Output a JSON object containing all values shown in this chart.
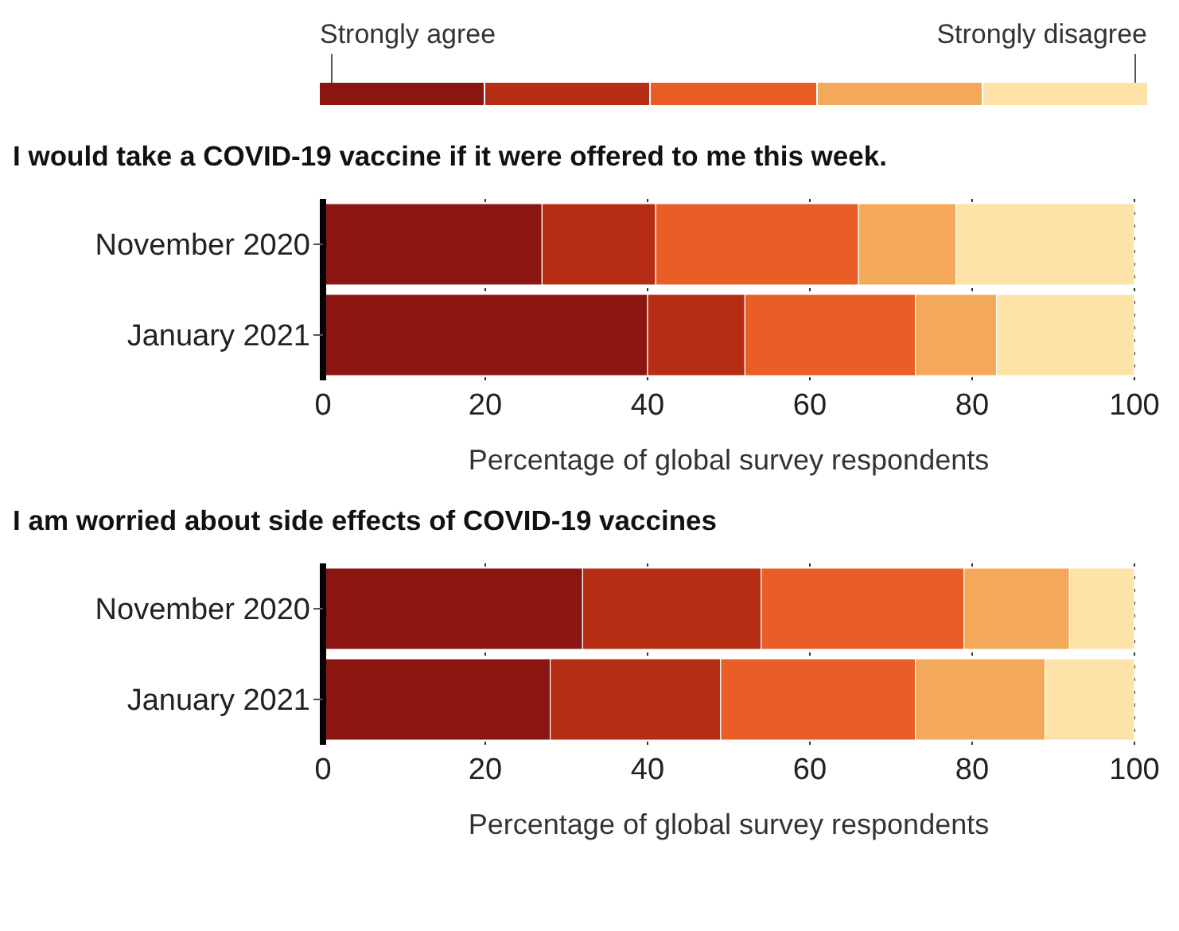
{
  "chart_data": [
    {
      "type": "bar",
      "orientation": "horizontal",
      "stacked": true,
      "title": "I would take a COVID-19 vaccine if it were offered to me this week.",
      "xlabel": "Percentage of global survey respondents",
      "categories": [
        "November 2020",
        "January 2021"
      ],
      "series": [
        {
          "color": "#8b1510",
          "values": [
            27,
            40
          ]
        },
        {
          "color": "#b52d12",
          "values": [
            14,
            12
          ]
        },
        {
          "color": "#e85e26",
          "values": [
            25,
            21
          ]
        },
        {
          "color": "#f4a95a",
          "values": [
            12,
            10
          ]
        },
        {
          "color": "#fde3a7",
          "values": [
            22,
            17
          ]
        }
      ],
      "xlim": [
        0,
        100
      ],
      "xticks": [
        0,
        20,
        40,
        60,
        80,
        100
      ],
      "grid": "x",
      "annotations": [
        "Strongly agree",
        "Strongly disagree"
      ]
    },
    {
      "type": "bar",
      "orientation": "horizontal",
      "stacked": true,
      "title": "I am worried about side effects of COVID-19 vaccines",
      "xlabel": "Percentage of global survey respondents",
      "categories": [
        "November 2020",
        "January 2021"
      ],
      "series": [
        {
          "color": "#8b1510",
          "values": [
            32,
            28
          ]
        },
        {
          "color": "#b52d12",
          "values": [
            22,
            21
          ]
        },
        {
          "color": "#e85e26",
          "values": [
            25,
            24
          ]
        },
        {
          "color": "#f4a95a",
          "values": [
            13,
            16
          ]
        },
        {
          "color": "#fde3a7",
          "values": [
            8,
            11
          ]
        }
      ],
      "xlim": [
        0,
        100
      ],
      "xticks": [
        0,
        20,
        40,
        60,
        80,
        100
      ],
      "grid": "x"
    }
  ]
}
